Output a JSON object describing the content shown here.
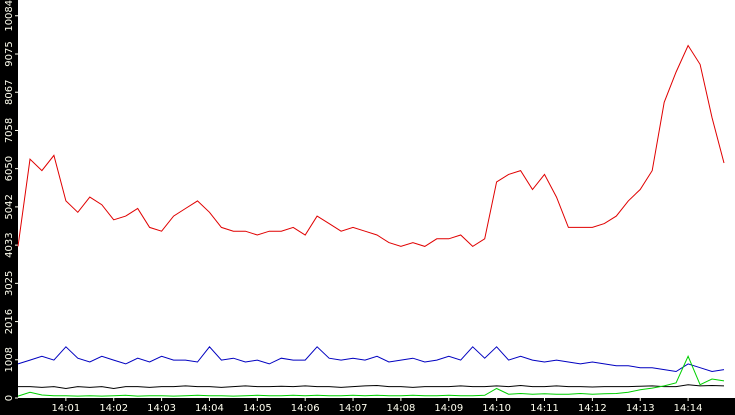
{
  "chart_data": {
    "type": "line",
    "x": [
      0,
      0.25,
      0.5,
      0.75,
      1,
      1.25,
      1.5,
      1.75,
      2,
      2.25,
      2.5,
      2.75,
      3,
      3.25,
      3.5,
      3.75,
      4,
      4.25,
      4.5,
      4.75,
      5,
      5.25,
      5.5,
      5.75,
      6,
      6.25,
      6.5,
      6.75,
      7,
      7.25,
      7.5,
      7.75,
      8,
      8.25,
      8.5,
      8.75,
      9,
      9.25,
      9.5,
      9.75,
      10,
      10.25,
      10.5,
      10.75,
      11,
      11.25,
      11.5,
      11.75,
      12,
      12.25,
      12.5,
      12.75,
      13,
      13.25,
      13.5,
      13.75,
      14,
      14.25,
      14.5,
      14.75
    ],
    "xlim": [
      0,
      14.98
    ],
    "xticks": [
      {
        "value": 1,
        "label": "14:01"
      },
      {
        "value": 2,
        "label": "14:02"
      },
      {
        "value": 3,
        "label": "14:03"
      },
      {
        "value": 4,
        "label": "14:04"
      },
      {
        "value": 5,
        "label": "14:05"
      },
      {
        "value": 6,
        "label": "14:06"
      },
      {
        "value": 7,
        "label": "14:07"
      },
      {
        "value": 8,
        "label": "14:08"
      },
      {
        "value": 9,
        "label": "14:09"
      },
      {
        "value": 10,
        "label": "14:10"
      },
      {
        "value": 11,
        "label": "14:11"
      },
      {
        "value": 12,
        "label": "14:12"
      },
      {
        "value": 13,
        "label": "14:13"
      },
      {
        "value": 14,
        "label": "14:14"
      }
    ],
    "ylim": [
      0,
      10500
    ],
    "yticks": [
      0,
      1008,
      2016,
      3025,
      4033,
      5042,
      6050,
      7058,
      8067,
      9075,
      10084
    ],
    "series": [
      {
        "color": "#e00000",
        "values": [
          4000,
          6300,
          6000,
          6400,
          5200,
          4900,
          5300,
          5100,
          4700,
          4800,
          5000,
          4500,
          4400,
          4800,
          5000,
          5200,
          4900,
          4500,
          4400,
          4400,
          4300,
          4400,
          4400,
          4500,
          4300,
          4800,
          4600,
          4400,
          4500,
          4400,
          4300,
          4100,
          4000,
          4100,
          4000,
          4200,
          4200,
          4300,
          4000,
          4200,
          5700,
          5900,
          6000,
          5500,
          5900,
          5300,
          4500,
          4500,
          4500,
          4600,
          4800,
          5200,
          5500,
          6000,
          7800,
          8600,
          9300,
          8800,
          7400,
          6200
        ]
      },
      {
        "color": "#0000c0",
        "values": [
          900,
          1000,
          1100,
          1000,
          1350,
          1050,
          950,
          1100,
          1000,
          900,
          1050,
          950,
          1100,
          1000,
          1000,
          950,
          1350,
          1000,
          1050,
          950,
          1000,
          900,
          1050,
          1000,
          1000,
          1350,
          1050,
          1000,
          1050,
          1000,
          1100,
          950,
          1000,
          1050,
          950,
          1000,
          1100,
          1000,
          1350,
          1050,
          1350,
          1000,
          1100,
          1000,
          950,
          1000,
          950,
          900,
          950,
          900,
          850,
          850,
          800,
          800,
          750,
          700,
          900,
          800,
          700,
          750
        ]
      },
      {
        "color": "#000000",
        "values": [
          300,
          300,
          280,
          300,
          250,
          300,
          280,
          300,
          250,
          300,
          300,
          280,
          300,
          300,
          320,
          300,
          300,
          280,
          300,
          320,
          300,
          300,
          310,
          300,
          320,
          300,
          300,
          280,
          300,
          320,
          330,
          300,
          300,
          280,
          300,
          300,
          300,
          320,
          300,
          300,
          320,
          300,
          330,
          300,
          300,
          320,
          300,
          300,
          290,
          300,
          300,
          300,
          310,
          320,
          300,
          300,
          350,
          320,
          330,
          320
        ]
      },
      {
        "color": "#00d000",
        "values": [
          50,
          150,
          80,
          60,
          60,
          50,
          60,
          50,
          60,
          70,
          50,
          60,
          60,
          50,
          60,
          70,
          60,
          60,
          50,
          60,
          70,
          60,
          60,
          70,
          60,
          70,
          60,
          60,
          70,
          60,
          70,
          60,
          60,
          70,
          60,
          60,
          70,
          60,
          60,
          70,
          250,
          100,
          120,
          100,
          110,
          100,
          100,
          120,
          100,
          110,
          120,
          150,
          220,
          260,
          320,
          400,
          1100,
          350,
          500,
          450
        ]
      }
    ]
  }
}
